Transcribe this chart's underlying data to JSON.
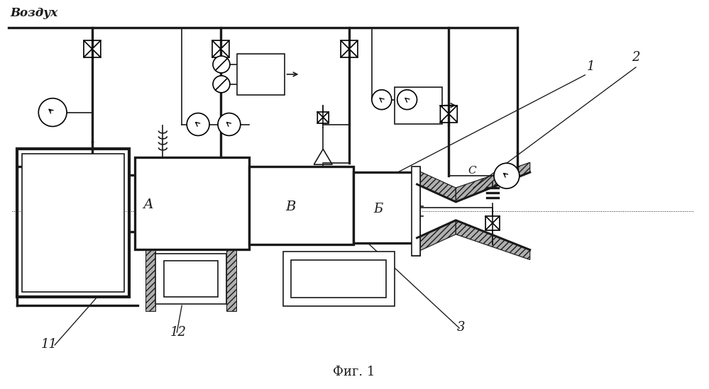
{
  "title": "Фиг. 1",
  "vozduh_label": "Воздух",
  "label_1": "1",
  "label_2": "2",
  "label_3": "3",
  "label_11": "11",
  "label_12": "12",
  "label_A": "А",
  "label_B": "В",
  "label_Б": "Б",
  "label_C": "С",
  "bg_color": "#ffffff",
  "line_color": "#1a1a1a",
  "gray_fill": "#b0b0b0",
  "light_gray": "#d8d8d8"
}
